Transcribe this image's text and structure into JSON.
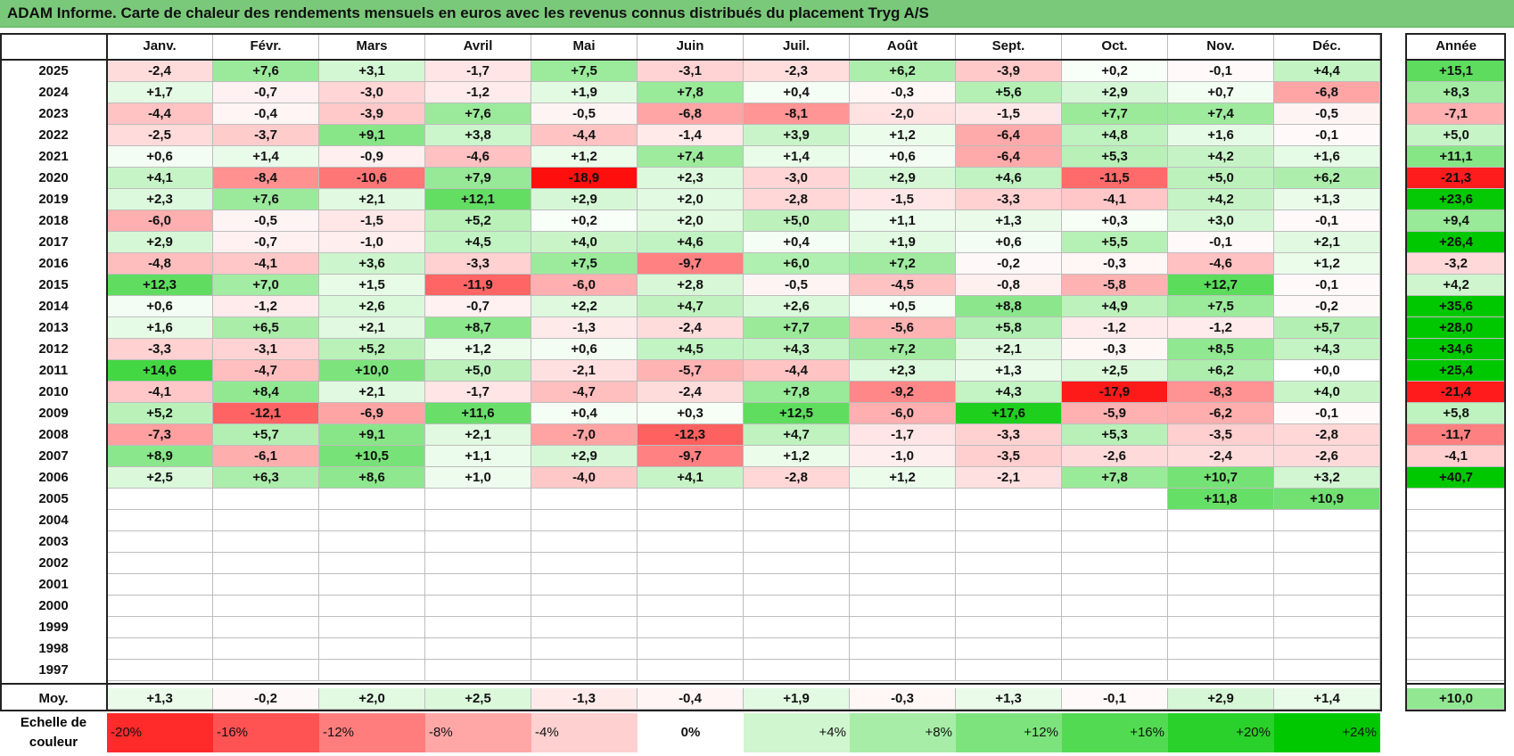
{
  "title": "ADAM Informe. Carte de chaleur des rendements mensuels en euros avec les revenus connus distribués du placement Tryg A/S",
  "colors": {
    "title_bg": "#7ac97a",
    "positive": "#00c800",
    "negative": "#ff0000",
    "neutral": "#ffffff"
  },
  "chart_data": {
    "type": "heatmap",
    "columns": [
      "Janv.",
      "Févr.",
      "Mars",
      "Avril",
      "Mai",
      "Juin",
      "Juil.",
      "Août",
      "Sept.",
      "Oct.",
      "Nov.",
      "Déc."
    ],
    "year_header": "Année",
    "rows": [
      {
        "year": "2025",
        "values": [
          "-2,4",
          "+7,6",
          "+3,1",
          "-1,7",
          "+7,5",
          "-3,1",
          "-2,3",
          "+6,2",
          "-3,9",
          "+0,2",
          "-0,1",
          "+4,4"
        ],
        "annual": "+15,1"
      },
      {
        "year": "2024",
        "values": [
          "+1,7",
          "-0,7",
          "-3,0",
          "-1,2",
          "+1,9",
          "+7,8",
          "+0,4",
          "-0,3",
          "+5,6",
          "+2,9",
          "+0,7",
          "-6,8"
        ],
        "annual": "+8,3"
      },
      {
        "year": "2023",
        "values": [
          "-4,4",
          "-0,4",
          "-3,9",
          "+7,6",
          "-0,5",
          "-6,8",
          "-8,1",
          "-2,0",
          "-1,5",
          "+7,7",
          "+7,4",
          "-0,5"
        ],
        "annual": "-7,1"
      },
      {
        "year": "2022",
        "values": [
          "-2,5",
          "-3,7",
          "+9,1",
          "+3,8",
          "-4,4",
          "-1,4",
          "+3,9",
          "+1,2",
          "-6,4",
          "+4,8",
          "+1,6",
          "-0,1"
        ],
        "annual": "+5,0"
      },
      {
        "year": "2021",
        "values": [
          "+0,6",
          "+1,4",
          "-0,9",
          "-4,6",
          "+1,2",
          "+7,4",
          "+1,4",
          "+0,6",
          "-6,4",
          "+5,3",
          "+4,2",
          "+1,6"
        ],
        "annual": "+11,1"
      },
      {
        "year": "2020",
        "values": [
          "+4,1",
          "-8,4",
          "-10,6",
          "+7,9",
          "-18,9",
          "+2,3",
          "-3,0",
          "+2,9",
          "+4,6",
          "-11,5",
          "+5,0",
          "+6,2"
        ],
        "annual": "-21,3"
      },
      {
        "year": "2019",
        "values": [
          "+2,3",
          "+7,6",
          "+2,1",
          "+12,1",
          "+2,9",
          "+2,0",
          "-2,8",
          "-1,5",
          "-3,3",
          "-4,1",
          "+4,2",
          "+1,3"
        ],
        "annual": "+23,6"
      },
      {
        "year": "2018",
        "values": [
          "-6,0",
          "-0,5",
          "-1,5",
          "+5,2",
          "+0,2",
          "+2,0",
          "+5,0",
          "+1,1",
          "+1,3",
          "+0,3",
          "+3,0",
          "-0,1"
        ],
        "annual": "+9,4"
      },
      {
        "year": "2017",
        "values": [
          "+2,9",
          "-0,7",
          "-1,0",
          "+4,5",
          "+4,0",
          "+4,6",
          "+0,4",
          "+1,9",
          "+0,6",
          "+5,5",
          "-0,1",
          "+2,1"
        ],
        "annual": "+26,4"
      },
      {
        "year": "2016",
        "values": [
          "-4,8",
          "-4,1",
          "+3,6",
          "-3,3",
          "+7,5",
          "-9,7",
          "+6,0",
          "+7,2",
          "-0,2",
          "-0,3",
          "-4,6",
          "+1,2"
        ],
        "annual": "-3,2"
      },
      {
        "year": "2015",
        "values": [
          "+12,3",
          "+7,0",
          "+1,5",
          "-11,9",
          "-6,0",
          "+2,8",
          "-0,5",
          "-4,5",
          "-0,8",
          "-5,8",
          "+12,7",
          "-0,1"
        ],
        "annual": "+4,2"
      },
      {
        "year": "2014",
        "values": [
          "+0,6",
          "-1,2",
          "+2,6",
          "-0,7",
          "+2,2",
          "+4,7",
          "+2,6",
          "+0,5",
          "+8,8",
          "+4,9",
          "+7,5",
          "-0,2"
        ],
        "annual": "+35,6"
      },
      {
        "year": "2013",
        "values": [
          "+1,6",
          "+6,5",
          "+2,1",
          "+8,7",
          "-1,3",
          "-2,4",
          "+7,7",
          "-5,6",
          "+5,8",
          "-1,2",
          "-1,2",
          "+5,7"
        ],
        "annual": "+28,0"
      },
      {
        "year": "2012",
        "values": [
          "-3,3",
          "-3,1",
          "+5,2",
          "+1,2",
          "+0,6",
          "+4,5",
          "+4,3",
          "+7,2",
          "+2,1",
          "-0,3",
          "+8,5",
          "+4,3"
        ],
        "annual": "+34,6"
      },
      {
        "year": "2011",
        "values": [
          "+14,6",
          "-4,7",
          "+10,0",
          "+5,0",
          "-2,1",
          "-5,7",
          "-4,4",
          "+2,3",
          "+1,3",
          "+2,5",
          "+6,2",
          "+0,0"
        ],
        "annual": "+25,4"
      },
      {
        "year": "2010",
        "values": [
          "-4,1",
          "+8,4",
          "+2,1",
          "-1,7",
          "-4,7",
          "-2,4",
          "+7,8",
          "-9,2",
          "+4,3",
          "-17,9",
          "-8,3",
          "+4,0"
        ],
        "annual": "-21,4"
      },
      {
        "year": "2009",
        "values": [
          "+5,2",
          "-12,1",
          "-6,9",
          "+11,6",
          "+0,4",
          "+0,3",
          "+12,5",
          "-6,0",
          "+17,6",
          "-5,9",
          "-6,2",
          "-0,1"
        ],
        "annual": "+5,8"
      },
      {
        "year": "2008",
        "values": [
          "-7,3",
          "+5,7",
          "+9,1",
          "+2,1",
          "-7,0",
          "-12,3",
          "+4,7",
          "-1,7",
          "-3,3",
          "+5,3",
          "-3,5",
          "-2,8"
        ],
        "annual": "-11,7"
      },
      {
        "year": "2007",
        "values": [
          "+8,9",
          "-6,1",
          "+10,5",
          "+1,1",
          "+2,9",
          "-9,7",
          "+1,2",
          "-1,0",
          "-3,5",
          "-2,6",
          "-2,4",
          "-2,6"
        ],
        "annual": "-4,1"
      },
      {
        "year": "2006",
        "values": [
          "+2,5",
          "+6,3",
          "+8,6",
          "+1,0",
          "-4,0",
          "+4,1",
          "-2,8",
          "+1,2",
          "-2,1",
          "+7,8",
          "+10,7",
          "+3,2"
        ],
        "annual": "+40,7"
      },
      {
        "year": "2005",
        "values": [
          "",
          "",
          "",
          "",
          "",
          "",
          "",
          "",
          "",
          "",
          "+11,8",
          "+10,9"
        ],
        "annual": ""
      },
      {
        "year": "2004",
        "values": [
          "",
          "",
          "",
          "",
          "",
          "",
          "",
          "",
          "",
          "",
          "",
          ""
        ],
        "annual": ""
      },
      {
        "year": "2003",
        "values": [
          "",
          "",
          "",
          "",
          "",
          "",
          "",
          "",
          "",
          "",
          "",
          ""
        ],
        "annual": ""
      },
      {
        "year": "2002",
        "values": [
          "",
          "",
          "",
          "",
          "",
          "",
          "",
          "",
          "",
          "",
          "",
          ""
        ],
        "annual": ""
      },
      {
        "year": "2001",
        "values": [
          "",
          "",
          "",
          "",
          "",
          "",
          "",
          "",
          "",
          "",
          "",
          ""
        ],
        "annual": ""
      },
      {
        "year": "2000",
        "values": [
          "",
          "",
          "",
          "",
          "",
          "",
          "",
          "",
          "",
          "",
          "",
          ""
        ],
        "annual": ""
      },
      {
        "year": "1999",
        "values": [
          "",
          "",
          "",
          "",
          "",
          "",
          "",
          "",
          "",
          "",
          "",
          ""
        ],
        "annual": ""
      },
      {
        "year": "1998",
        "values": [
          "",
          "",
          "",
          "",
          "",
          "",
          "",
          "",
          "",
          "",
          "",
          ""
        ],
        "annual": ""
      },
      {
        "year": "1997",
        "values": [
          "",
          "",
          "",
          "",
          "",
          "",
          "",
          "",
          "",
          "",
          "",
          ""
        ],
        "annual": ""
      }
    ],
    "average": {
      "label": "Moy.",
      "values": [
        "+1,3",
        "-0,2",
        "+2,0",
        "+2,5",
        "-1,3",
        "-0,4",
        "+1,9",
        "-0,3",
        "+1,3",
        "-0,1",
        "+2,9",
        "+1,4"
      ],
      "annual": "+10,0"
    },
    "scale": {
      "label": "Echelle de couleur",
      "steps": [
        {
          "text": "-20%",
          "value": -20
        },
        {
          "text": "-16%",
          "value": -16
        },
        {
          "text": "-12%",
          "value": -12
        },
        {
          "text": "-8%",
          "value": -8
        },
        {
          "text": "-4%",
          "value": -4
        },
        {
          "text": "0%",
          "value": 0
        },
        {
          "text": "+4%",
          "value": 4
        },
        {
          "text": "+8%",
          "value": 8
        },
        {
          "text": "+12%",
          "value": 12
        },
        {
          "text": "+16%",
          "value": 16
        },
        {
          "text": "+20%",
          "value": 20
        },
        {
          "text": "+24%",
          "value": 24
        }
      ]
    }
  }
}
